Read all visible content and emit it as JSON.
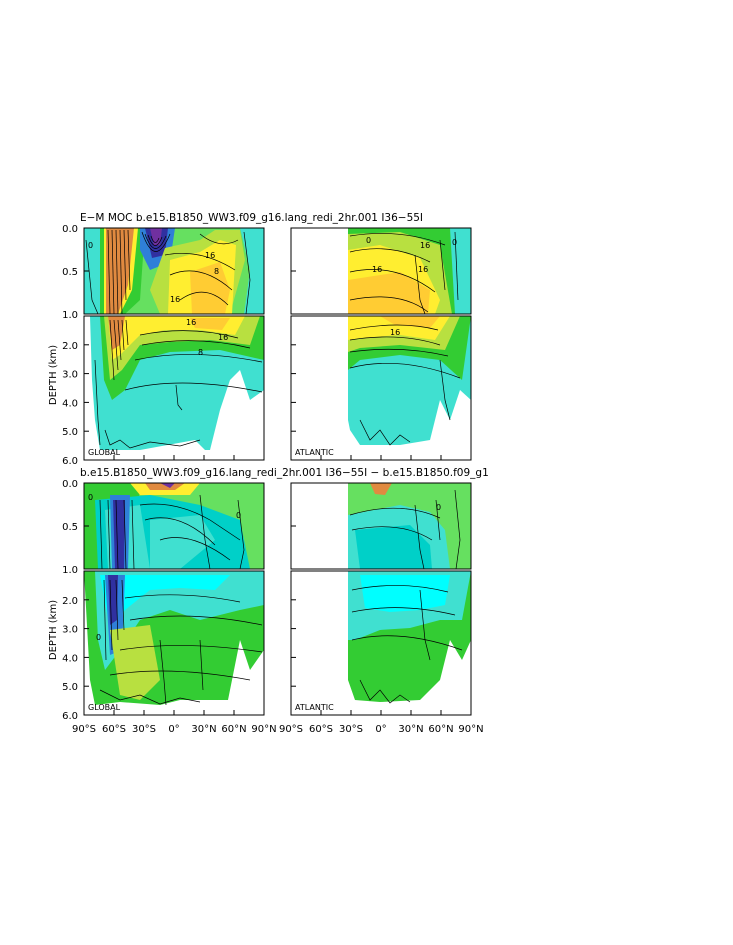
{
  "figure": {
    "top_title": "E−M MOC   b.e15.B1850_WW3.f09_g16.lang_redi_2hr.001  I36−55I",
    "bottom_title": "b.e15.B1850_WW3.f09_g16.lang_redi_2hr.001  I36−55I  −  b.e15.B1850.f09_g1",
    "ylabel": "DEPTH  (km)",
    "upper_depth_ticks": [
      "0.0",
      "0.5",
      "1.0"
    ],
    "lower_depth_ticks": [
      "2.0",
      "3.0",
      "4.0",
      "5.0",
      "6.0"
    ],
    "lat_ticks": [
      "90°S",
      "60°S",
      "30°S",
      "0°",
      "30°N",
      "60°N",
      "90°N"
    ],
    "panel_labels": {
      "global": "GLOBAL",
      "atlantic": "ATLANTIC"
    },
    "colors": {
      "white": "#ffffff",
      "cyan_light": "#40e0d0",
      "cyan": "#00ffff",
      "teal": "#00d0c8",
      "green": "#33cc33",
      "lightgreen": "#66e060",
      "yellowgreen": "#b8e040",
      "yellow": "#ffee30",
      "gold": "#ffcc33",
      "orange": "#e08a40",
      "blue": "#2f7fd8",
      "darkblue": "#3030a0",
      "purple": "#7030a0"
    }
  },
  "chart_data": [
    {
      "type": "heatmap",
      "title": "E−M MOC   b.e15.B1850_WW3.f09_g16.lang_redi_2hr.001  I36−55I",
      "panels": [
        "GLOBAL",
        "ATLANTIC"
      ],
      "xlabel": "",
      "ylabel": "DEPTH  (km)",
      "xlim": [
        "90°S",
        "90°N"
      ],
      "ylim_upper": [
        0.0,
        1.0
      ],
      "ylim_lower": [
        1.0,
        6.0
      ],
      "contour_labels": [
        "0",
        "16",
        "8",
        "16",
        "16",
        "8",
        "16"
      ],
      "atlantic_contour_labels": [
        "16",
        "16",
        "16",
        "16",
        "0",
        "0"
      ]
    },
    {
      "type": "heatmap",
      "title": "b.e15.B1850_WW3.f09_g16.lang_redi_2hr.001  I36−55I  −  b.e15.B1850.f09_g1",
      "panels": [
        "GLOBAL",
        "ATLANTIC"
      ],
      "xlabel": "",
      "ylabel": "DEPTH  (km)",
      "xlim": [
        "90°S",
        "90°N"
      ],
      "ylim_upper": [
        0.0,
        1.0
      ],
      "ylim_lower": [
        1.0,
        6.0
      ],
      "contour_labels": [
        "0",
        "0",
        "0",
        "0"
      ]
    }
  ]
}
